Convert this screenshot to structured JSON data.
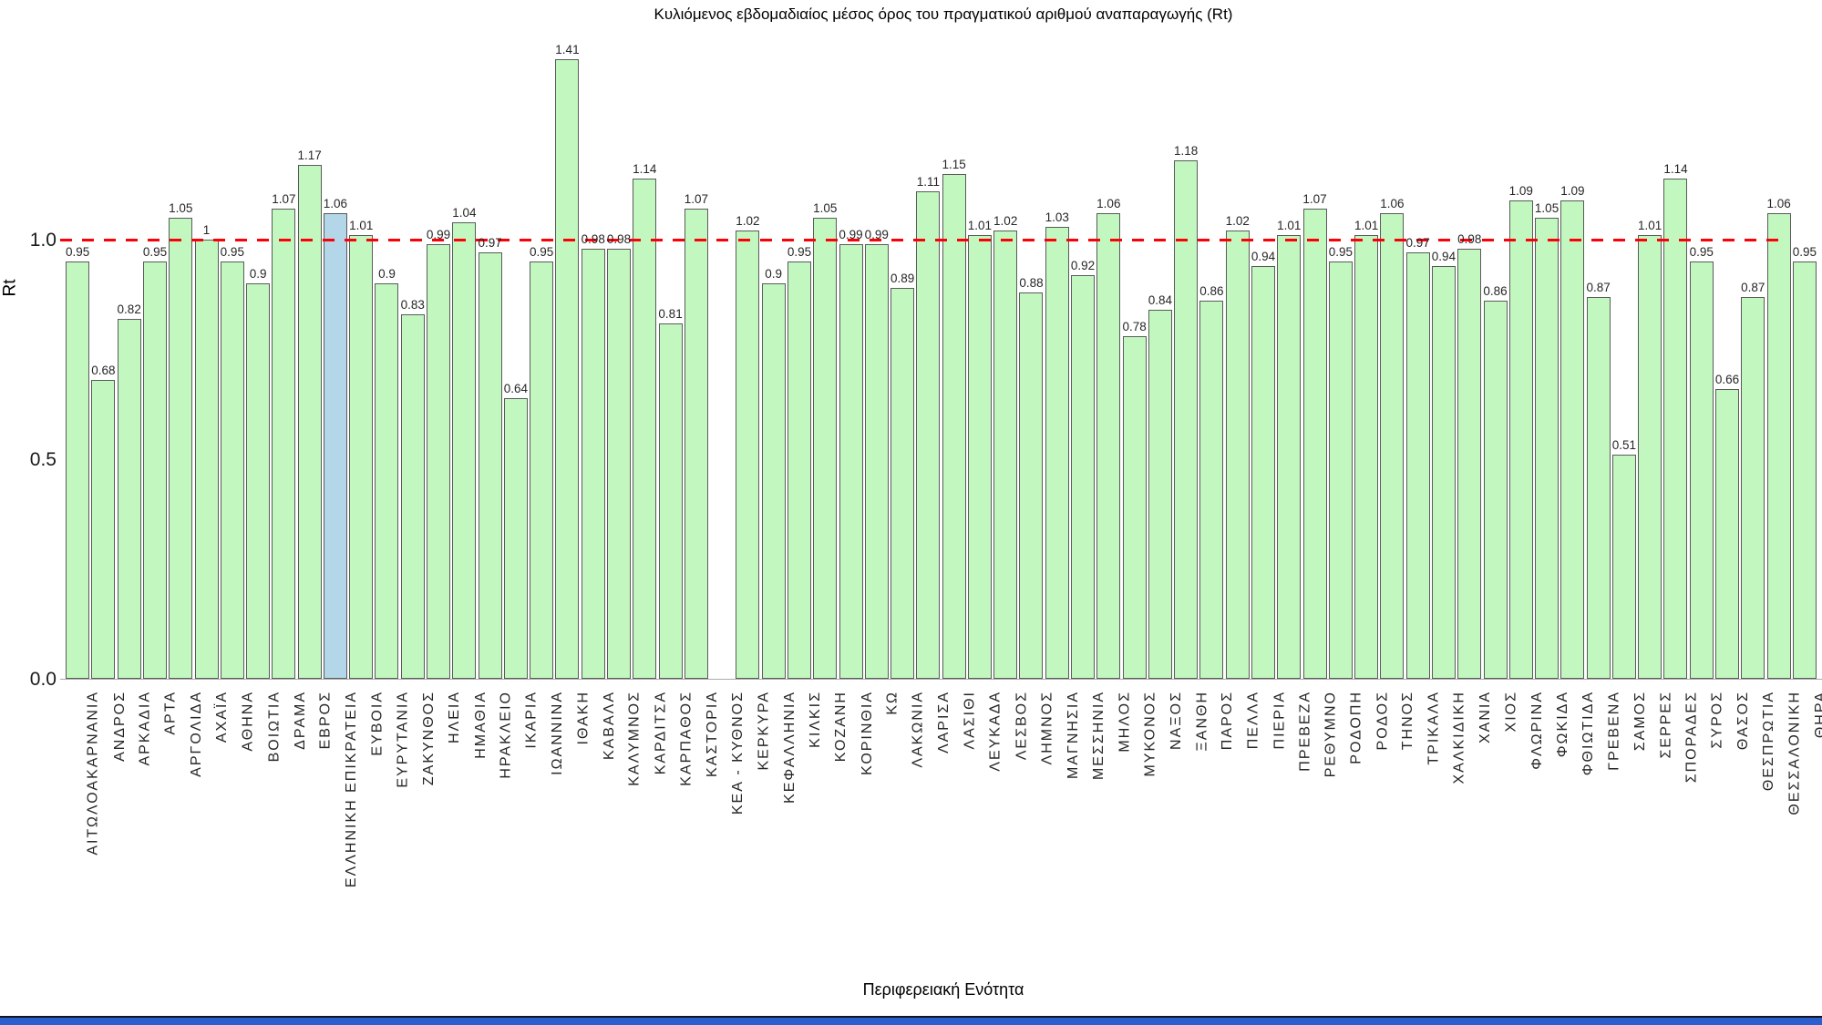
{
  "chart_data": {
    "type": "bar",
    "title": "Κυλιόμενος εβδομαδιαίος μέσος όρος του πραγματικού αριθμού αναπαραγωγής (Rt)",
    "xlabel": "Περιφερειακή Ενότητα",
    "ylabel": "Rt",
    "ylim": [
      0,
      1.45
    ],
    "ytick_labels": [
      "0.0",
      "0.5",
      "1.0"
    ],
    "ytick_values": [
      0,
      0.5,
      1
    ],
    "grid": false,
    "legend": "none",
    "reference_line": {
      "value": 1.0,
      "color": "#fb0007",
      "style": "dashed"
    },
    "highlight_category": "ΕΛΛΗΝΙΚΗ ΕΠΙΚΡΑΤΕΙΑ",
    "colors": {
      "bar_fill": "#c2f8c0",
      "bar_edge": "#5a5a5a",
      "highlight_fill": "#b3d7e9",
      "value_label": "#262626"
    },
    "categories": [
      "ΑΙΤΩΛΟΑΚΑΡΝΑΝΙΑ",
      "ΑΝΔΡΟΣ",
      "ΑΡΚΑΔΙΑ",
      "ΑΡΤΑ",
      "ΑΡΓΟΛΙΔΑ",
      "ΑΧΑΪΑ",
      "ΑΘΗΝΑ",
      "ΒΟΙΩΤΙΑ",
      "ΔΡΑΜΑ",
      "ΕΒΡΟΣ",
      "ΕΛΛΗΝΙΚΗ ΕΠΙΚΡΑΤΕΙΑ",
      "ΕΥΒΟΙΑ",
      "ΕΥΡΥΤΑΝΙΑ",
      "ΖΑΚΥΝΘΟΣ",
      "ΗΛΕΙΑ",
      "ΗΜΑΘΙΑ",
      "ΗΡΑΚΛΕΙΟ",
      "ΙΚΑΡΙΑ",
      "ΙΩΑΝΝΙΝΑ",
      "ΙΘΑΚΗ",
      "ΚΑΒΑΛΑ",
      "ΚΑΛΥΜΝΟΣ",
      "ΚΑΡΔΙΤΣΑ",
      "ΚΑΡΠΑΘΟΣ",
      "ΚΑΣΤΟΡΙΑ",
      "ΚΕΑ - ΚΥΘΝΟΣ",
      "ΚΕΡΚΥΡΑ",
      "ΚΕΦΑΛΛΗΝΙΑ",
      "ΚΙΛΚΙΣ",
      "ΚΟΖΑΝΗ",
      "ΚΟΡΙΝΘΙΑ",
      "ΚΩ",
      "ΛΑΚΩΝΙΑ",
      "ΛΑΡΙΣΑ",
      "ΛΑΣΙΘΙ",
      "ΛΕΥΚΑΔΑ",
      "ΛΕΣΒΟΣ",
      "ΛΗΜΝΟΣ",
      "ΜΑΓΝΗΣΙΑ",
      "ΜΕΣΣΗΝΙΑ",
      "ΜΗΛΟΣ",
      "ΜΥΚΟΝΟΣ",
      "ΝΑΞΟΣ",
      "ΞΑΝΘΗ",
      "ΠΑΡΟΣ",
      "ΠΕΛΛΑ",
      "ΠΙΕΡΙΑ",
      "ΠΡΕΒΕΖΑ",
      "ΡΕΘΥΜΝΟ",
      "ΡΟΔΟΠΗ",
      "ΡΟΔΟΣ",
      "ΤΗΝΟΣ",
      "ΤΡΙΚΑΛΑ",
      "ΧΑΛΚΙΔΙΚΗ",
      "ΧΑΝΙΑ",
      "ΧΙΟΣ",
      "ΦΛΩΡΙΝΑ",
      "ΦΩΚΙΔΑ",
      "ΦΘΙΩΤΙΔΑ",
      "ΓΡΕΒΕΝΑ",
      "ΣΑΜΟΣ",
      "ΣΕΡΡΕΣ",
      "ΣΠΟΡΑΔΕΣ",
      "ΣΥΡΟΣ",
      "ΘΑΣΟΣ",
      "ΘΕΣΠΡΩΤΙΑ",
      "ΘΕΣΣΑΛΟΝΙΚΗ",
      "ΘΗΡΑ"
    ],
    "values": [
      0.95,
      0.68,
      0.82,
      0.95,
      1.05,
      1,
      0.95,
      0.9,
      1.07,
      1.17,
      1.06,
      1.01,
      0.9,
      0.83,
      0.99,
      1.04,
      0.97,
      0.64,
      0.95,
      1.41,
      0.98,
      0.98,
      1.14,
      0.81,
      1.07,
      null,
      1.02,
      0.9,
      0.95,
      1.05,
      0.99,
      0.99,
      0.89,
      1.11,
      1.15,
      1.01,
      1.02,
      0.88,
      1.03,
      0.92,
      1.06,
      0.78,
      0.84,
      1.18,
      0.86,
      1.02,
      0.94,
      1.01,
      1.07,
      0.95,
      1.01,
      1.06,
      0.97,
      0.94,
      0.98,
      0.86,
      1.09,
      1.05,
      1.09,
      0.87,
      0.51,
      1.01,
      1.14,
      0.95,
      0.66,
      0.87,
      1.06,
      0.95
    ]
  },
  "footer": {
    "strip_color": "#2b5fd0"
  }
}
